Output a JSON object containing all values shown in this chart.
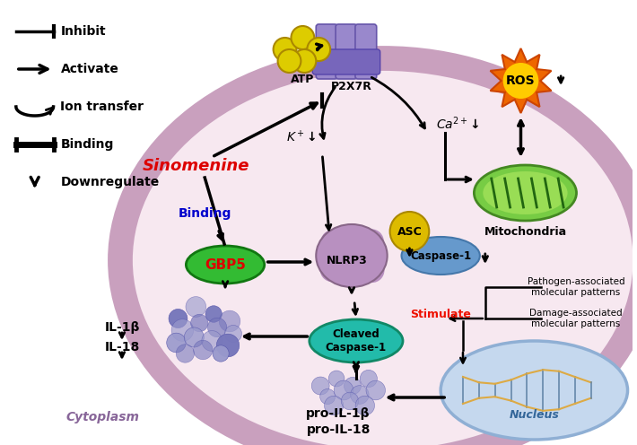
{
  "bg_outer": "#ffffff",
  "bg_cell": "#f7e8f0",
  "bg_membrane": "#c9a0be",
  "bg_nucleus": "#b8cce4",
  "cytoplasm_label": "Cytoplasm",
  "nucleus_label": "Nucleus",
  "sinomenine_color": "#dd0000",
  "sinomenine_label": "Sinomenine",
  "gbp5_color": "#33bb33",
  "gbp5_label": "GBP5",
  "gbp5_text_color": "#dd0000",
  "nlrp3_color": "#b388b3",
  "asc_color": "#ddbb00",
  "asc_label": "ASC",
  "caspase1_color": "#6699cc",
  "cleaved_caspase1_color": "#22bbaa",
  "ros_outer_color": "#ee6600",
  "ros_inner_color": "#ffcc00",
  "ros_label": "ROS",
  "atp_color": "#ddcc00",
  "atp_label": "ATP",
  "p2x7r_label": "P2X7R",
  "p2x7r_color": "#8877bb",
  "mitochondria_color": "#77cc44",
  "mitochondria_label": "Mitochondria",
  "binding_color": "#0000cc",
  "arrow_color": "#111111",
  "stimulate_color": "#ee1100",
  "il_dot_color": "#7777bb",
  "il_dot_color2": "#9999cc",
  "legend_inhibit": "Inhibit",
  "legend_activate": "Activate",
  "legend_ion": "Ion transfer",
  "legend_binding": "Binding",
  "legend_downreg": "Downregulate",
  "pathogen_text": "Pathogen-associated\nmolecular patterns",
  "damage_text": "Damage-associated\nmolecular patterns"
}
